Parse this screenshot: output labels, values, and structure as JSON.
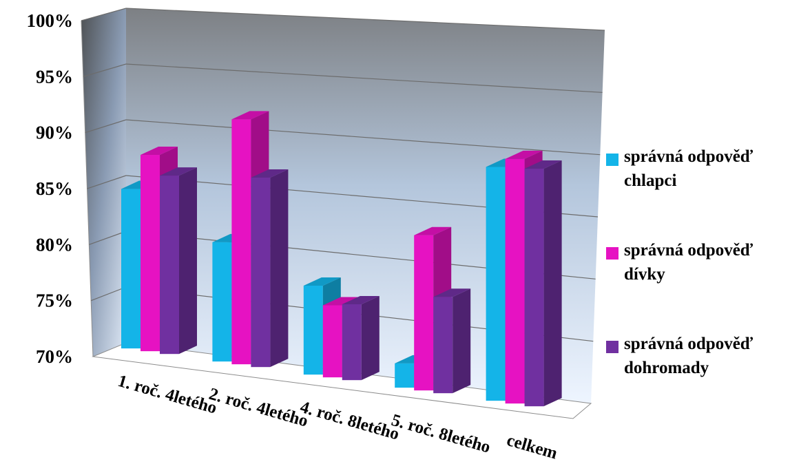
{
  "chart_data": {
    "type": "bar",
    "title": "",
    "xlabel": "",
    "ylabel": "",
    "ylim": [
      70,
      100
    ],
    "y_ticks": [
      "70%",
      "75%",
      "80%",
      "85%",
      "90%",
      "95%",
      "100%"
    ],
    "y_tick_values": [
      70,
      75,
      80,
      85,
      90,
      95,
      100
    ],
    "grid": true,
    "legend_position": "right",
    "categories": [
      "1. roč. 4letého",
      "2. roč. 4letého",
      "4. roč. 8letého",
      "5. roč. 8letého",
      "celkem"
    ],
    "series": [
      {
        "name": "správná odpověď chlapci",
        "color": "#14b4e8",
        "values": [
          84.8,
          81.3,
          78.6,
          72.4,
          93.6
        ]
      },
      {
        "name": "správná odpověď dívky",
        "color": "#e612c2",
        "values": [
          88.3,
          93.3,
          77.0,
          85.4,
          94.8
        ]
      },
      {
        "name": "správná odpověď dohromady",
        "color": "#7030a0",
        "values": [
          86.7,
          88.1,
          77.4,
          79.6,
          94.2
        ]
      }
    ]
  }
}
